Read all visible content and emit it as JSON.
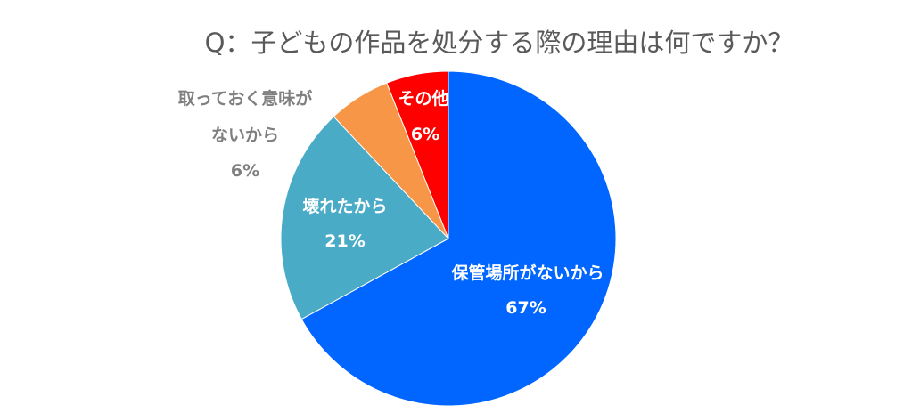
{
  "chart_data": {
    "type": "pie",
    "title": "Q：子どもの作品を処分する際の理由は何ですか？",
    "slices": [
      {
        "name": "保管場所がないから",
        "value": 67,
        "value_label": "67%",
        "color": "#0066ff",
        "label_color": "#ffffff"
      },
      {
        "name": "壊れたから",
        "value": 21,
        "value_label": "21%",
        "color": "#4aabc6",
        "label_color": "#ffffff"
      },
      {
        "name_lines": [
          "取っておく意味が",
          "ないから"
        ],
        "value": 6,
        "value_label": "6%",
        "color": "#f79646",
        "label_color": "#7f7f7f"
      },
      {
        "name": "その他",
        "value": 6,
        "value_label": "6%",
        "color": "#ff0000",
        "label_color": "#ffffff"
      }
    ],
    "start_angle_deg": 0,
    "direction": "clockwise",
    "legend": "none"
  }
}
